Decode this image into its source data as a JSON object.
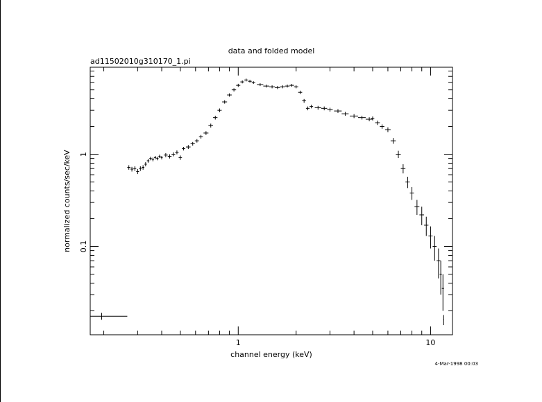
{
  "chart_data": {
    "type": "scatter",
    "title": "data and folded model",
    "subtitle": "ad11502010g310170_1.pi",
    "xlabel": "channel energy (keV)",
    "ylabel": "normalized counts/sec/keV",
    "xscale": "log",
    "yscale": "log",
    "xlim": [
      0.17,
      13.0
    ],
    "ylim": [
      0.011,
      8.8
    ],
    "x_ticks": [
      {
        "value": 1,
        "label": "1"
      },
      {
        "value": 10,
        "label": "10"
      }
    ],
    "y_ticks": [
      {
        "value": 0.1,
        "label": "0.1"
      },
      {
        "value": 1,
        "label": "1"
      }
    ],
    "grid": false,
    "legend": "none",
    "timestamp": "4-Mar-1998 00:03",
    "series": [
      {
        "x": [
          0.27,
          0.28,
          0.29,
          0.3,
          0.31,
          0.32,
          0.33,
          0.34,
          0.35,
          0.36,
          0.37,
          0.38,
          0.39,
          0.4,
          0.42,
          0.44,
          0.46,
          0.48,
          0.5,
          0.52,
          0.55,
          0.58,
          0.61,
          0.64,
          0.68,
          0.72,
          0.76,
          0.8,
          0.85,
          0.9,
          0.95,
          1.0,
          1.05,
          1.1,
          1.15,
          1.2,
          1.3,
          1.4,
          1.5,
          1.6,
          1.7,
          1.8,
          1.9,
          2.0,
          2.1,
          2.2,
          2.3,
          2.4,
          2.6,
          2.8,
          3.0,
          3.3,
          3.6,
          4.0,
          4.4,
          4.8,
          5.0,
          5.3,
          5.6,
          6.0,
          6.4,
          6.8,
          7.2,
          7.6,
          8.0,
          8.5,
          9.0,
          9.5,
          10.0,
          10.5,
          11.0,
          11.3,
          11.6
        ],
        "y": [
          0.72,
          0.69,
          0.7,
          0.65,
          0.7,
          0.72,
          0.78,
          0.85,
          0.9,
          0.88,
          0.92,
          0.9,
          0.95,
          0.92,
          0.98,
          0.95,
          1.0,
          1.05,
          0.92,
          1.15,
          1.2,
          1.3,
          1.4,
          1.55,
          1.7,
          2.05,
          2.5,
          3.0,
          3.7,
          4.4,
          5.0,
          5.6,
          6.1,
          6.4,
          6.2,
          6.0,
          5.7,
          5.5,
          5.4,
          5.3,
          5.4,
          5.5,
          5.6,
          5.4,
          4.7,
          3.8,
          3.15,
          3.3,
          3.2,
          3.15,
          3.05,
          2.95,
          2.75,
          2.6,
          2.5,
          2.4,
          2.45,
          2.2,
          2.0,
          1.85,
          1.4,
          1.0,
          0.7,
          0.5,
          0.38,
          0.27,
          0.22,
          0.17,
          0.13,
          0.1,
          0.07,
          0.05,
          0.035
        ],
        "xerr": [
          0.005,
          0.005,
          0.005,
          0.005,
          0.005,
          0.005,
          0.005,
          0.005,
          0.005,
          0.005,
          0.005,
          0.005,
          0.005,
          0.005,
          0.01,
          0.01,
          0.01,
          0.01,
          0.01,
          0.01,
          0.015,
          0.015,
          0.015,
          0.015,
          0.02,
          0.02,
          0.02,
          0.02,
          0.025,
          0.025,
          0.025,
          0.025,
          0.025,
          0.025,
          0.025,
          0.025,
          0.05,
          0.05,
          0.05,
          0.05,
          0.05,
          0.05,
          0.05,
          0.05,
          0.05,
          0.05,
          0.05,
          0.05,
          0.1,
          0.1,
          0.1,
          0.15,
          0.15,
          0.2,
          0.2,
          0.2,
          0.1,
          0.15,
          0.15,
          0.2,
          0.2,
          0.2,
          0.2,
          0.2,
          0.2,
          0.25,
          0.25,
          0.25,
          0.25,
          0.25,
          0.25,
          0.15,
          0.15
        ],
        "yerr": [
          0.04,
          0.04,
          0.04,
          0.04,
          0.04,
          0.04,
          0.04,
          0.04,
          0.04,
          0.04,
          0.04,
          0.04,
          0.04,
          0.04,
          0.05,
          0.05,
          0.05,
          0.05,
          0.05,
          0.05,
          0.06,
          0.06,
          0.06,
          0.07,
          0.08,
          0.1,
          0.12,
          0.14,
          0.16,
          0.18,
          0.2,
          0.22,
          0.22,
          0.22,
          0.22,
          0.2,
          0.2,
          0.2,
          0.2,
          0.2,
          0.2,
          0.2,
          0.2,
          0.2,
          0.2,
          0.18,
          0.15,
          0.15,
          0.15,
          0.15,
          0.15,
          0.14,
          0.13,
          0.13,
          0.12,
          0.12,
          0.12,
          0.12,
          0.11,
          0.11,
          0.1,
          0.09,
          0.08,
          0.07,
          0.06,
          0.05,
          0.05,
          0.04,
          0.035,
          0.03,
          0.025,
          0.02,
          0.015
        ]
      },
      {
        "x": [
          0.195,
          11.7
        ],
        "y": [
          0.0175,
          0.016
        ],
        "xerr": [
          0.07,
          0.05
        ],
        "yerr": [
          0.0015,
          0.002
        ]
      }
    ]
  }
}
